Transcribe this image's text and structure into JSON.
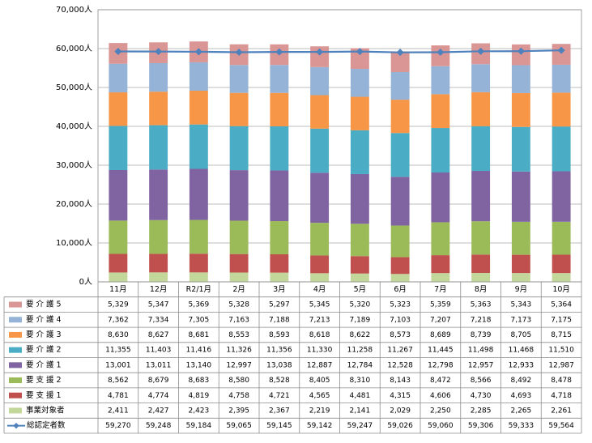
{
  "chart_data": {
    "type": "bar",
    "stacked": true,
    "categories": [
      "11月",
      "12月",
      "R2/1月",
      "2月",
      "3月",
      "4月",
      "5月",
      "6月",
      "7月",
      "8月",
      "9月",
      "10月"
    ],
    "ylim": [
      0,
      70000
    ],
    "yticks": [
      "0人",
      "10,000人",
      "20,000人",
      "30,000人",
      "40,000人",
      "50,000人",
      "60,000人",
      "70,000人"
    ],
    "grid": true,
    "legend": "table-left",
    "series": [
      {
        "name": "事業対象者",
        "color": "#c4d79b",
        "values": [
          2411,
          2427,
          2423,
          2395,
          2367,
          2219,
          2141,
          2029,
          2250,
          2285,
          2265,
          2261
        ],
        "labels": [
          "2,411",
          "2,427",
          "2,423",
          "2,395",
          "2,367",
          "2,219",
          "2,141",
          "2,029",
          "2,250",
          "2,285",
          "2,265",
          "2,261"
        ]
      },
      {
        "name": "要 支 援 1",
        "color": "#c0504d",
        "values": [
          4781,
          4774,
          4819,
          4758,
          4721,
          4565,
          4481,
          4315,
          4606,
          4730,
          4693,
          4718
        ],
        "labels": [
          "4,781",
          "4,774",
          "4,819",
          "4,758",
          "4,721",
          "4,565",
          "4,481",
          "4,315",
          "4,606",
          "4,730",
          "4,693",
          "4,718"
        ]
      },
      {
        "name": "要 支 援 2",
        "color": "#9bbb59",
        "values": [
          8562,
          8679,
          8683,
          8580,
          8528,
          8405,
          8310,
          8143,
          8472,
          8566,
          8492,
          8478
        ],
        "labels": [
          "8,562",
          "8,679",
          "8,683",
          "8,580",
          "8,528",
          "8,405",
          "8,310",
          "8,143",
          "8,472",
          "8,566",
          "8,492",
          "8,478"
        ]
      },
      {
        "name": "要 介 護 1",
        "color": "#8064a2",
        "values": [
          13001,
          13011,
          13140,
          12997,
          13038,
          12887,
          12784,
          12528,
          12798,
          12957,
          12933,
          12987
        ],
        "labels": [
          "13,001",
          "13,011",
          "13,140",
          "12,997",
          "13,038",
          "12,887",
          "12,784",
          "12,528",
          "12,798",
          "12,957",
          "12,933",
          "12,987"
        ]
      },
      {
        "name": "要 介 護 2",
        "color": "#4bacc6",
        "values": [
          11355,
          11403,
          11416,
          11326,
          11356,
          11330,
          11258,
          11267,
          11445,
          11498,
          11468,
          11510
        ],
        "labels": [
          "11,355",
          "11,403",
          "11,416",
          "11,326",
          "11,356",
          "11,330",
          "11,258",
          "11,267",
          "11,445",
          "11,498",
          "11,468",
          "11,510"
        ]
      },
      {
        "name": "要 介 護 3",
        "color": "#f79646",
        "values": [
          8630,
          8627,
          8681,
          8553,
          8593,
          8618,
          8622,
          8573,
          8689,
          8739,
          8705,
          8715
        ],
        "labels": [
          "8,630",
          "8,627",
          "8,681",
          "8,553",
          "8,593",
          "8,618",
          "8,622",
          "8,573",
          "8,689",
          "8,739",
          "8,705",
          "8,715"
        ]
      },
      {
        "name": "要 介 護 4",
        "color": "#95b3d7",
        "values": [
          7362,
          7334,
          7305,
          7163,
          7188,
          7213,
          7189,
          7103,
          7207,
          7218,
          7173,
          7175
        ],
        "labels": [
          "7,362",
          "7,334",
          "7,305",
          "7,163",
          "7,188",
          "7,213",
          "7,189",
          "7,103",
          "7,207",
          "7,218",
          "7,173",
          "7,175"
        ]
      },
      {
        "name": "要 介 護 5",
        "color": "#da9694",
        "values": [
          5329,
          5347,
          5369,
          5328,
          5297,
          5345,
          5320,
          5323,
          5359,
          5363,
          5343,
          5364
        ],
        "labels": [
          "5,329",
          "5,347",
          "5,369",
          "5,328",
          "5,297",
          "5,345",
          "5,320",
          "5,323",
          "5,359",
          "5,363",
          "5,343",
          "5,364"
        ]
      }
    ],
    "line": {
      "name": "総認定者数",
      "color": "#4f81bd",
      "values": [
        59270,
        59248,
        59184,
        59065,
        59145,
        59142,
        59247,
        59026,
        59060,
        59306,
        59333,
        59564
      ],
      "labels": [
        "59,270",
        "59,248",
        "59,184",
        "59,065",
        "59,145",
        "59,142",
        "59,247",
        "59,026",
        "59,060",
        "59,306",
        "59,333",
        "59,564"
      ]
    },
    "table_row_order": [
      "要 介 護 5",
      "要 介 護 4",
      "要 介 護 3",
      "要 介 護 2",
      "要 介 護 1",
      "要 支 援 2",
      "要 支 援 1",
      "事業対象者"
    ]
  }
}
